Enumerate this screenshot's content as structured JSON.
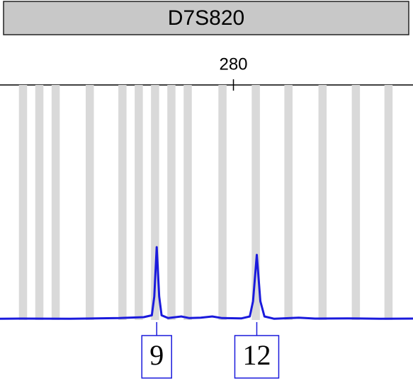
{
  "chart_data": {
    "type": "line",
    "title": "D7S820",
    "xlim": [
      265.7,
      291.0
    ],
    "xticks": [
      280
    ],
    "ylim": [
      0,
      100
    ],
    "allele_bins": [
      267.11,
      268.11,
      269.11,
      271.2,
      273.2,
      274.2,
      275.2,
      276.2,
      277.2,
      279.33,
      281.37,
      283.37,
      285.46,
      287.5,
      289.5
    ],
    "bin_width": 0.5,
    "bin_color": "#d9d9d9",
    "series": [
      {
        "color": "#1a1adc",
        "x": [
          265.7,
          267,
          270,
          273,
          274.5,
          275.0,
          275.15,
          275.3,
          275.45,
          275.6,
          276,
          276.8,
          277.3,
          278,
          278.7,
          279.3,
          280.5,
          281.0,
          281.2,
          281.43,
          281.65,
          281.9,
          282.5,
          284,
          285,
          287,
          289,
          291
        ],
        "values": [
          0.5,
          0.6,
          0.5,
          0.8,
          1.2,
          2,
          10,
          31,
          10,
          2,
          0.8,
          1.5,
          0.8,
          1.0,
          1.5,
          0.8,
          0.7,
          1.5,
          8,
          27.7,
          8,
          1.5,
          0.5,
          1.0,
          0.6,
          0.7,
          0.5,
          0.6
        ]
      }
    ],
    "annotations": [
      {
        "text": "9",
        "x": 275.3
      },
      {
        "text": "12",
        "x": 281.43
      }
    ]
  }
}
